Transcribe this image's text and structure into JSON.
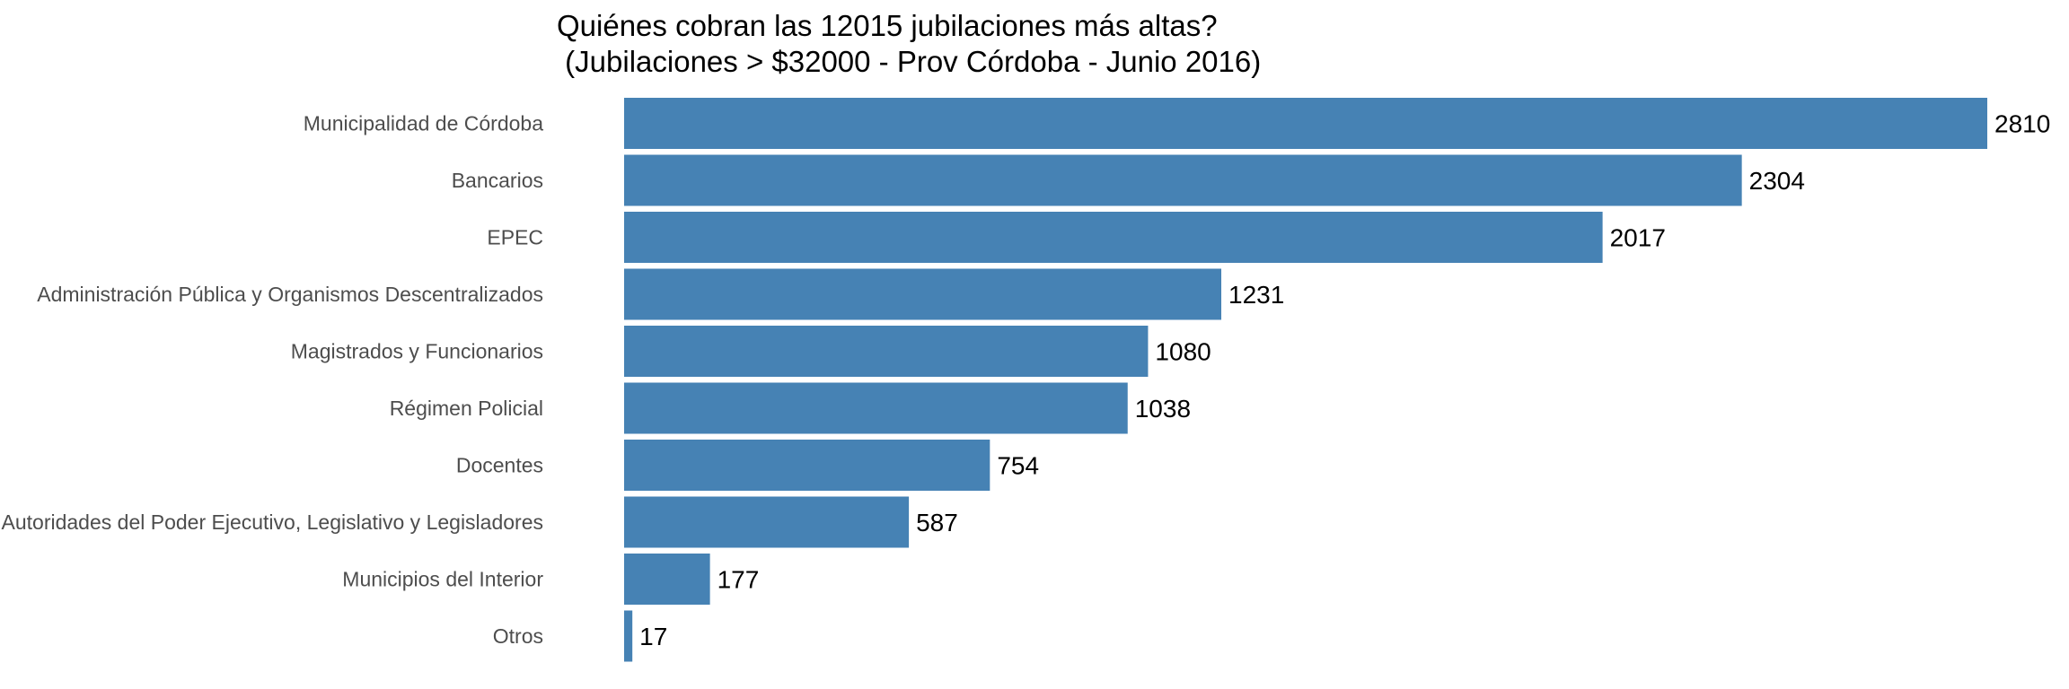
{
  "chart_data": {
    "type": "bar",
    "orientation": "horizontal",
    "title": "Quiénes cobran las 12015 jubilaciones más altas?",
    "subtitle": "(Jubilaciones > $32000 - Prov Córdoba - Junio 2016)",
    "xlabel": "",
    "ylabel": "",
    "categories": [
      "Municipalidad de Córdoba",
      "Bancarios",
      "EPEC",
      "Administración Pública y Organismos Descentralizados",
      "Magistrados y Funcionarios",
      "Régimen Policial",
      "Docentes",
      "Autoridades del Poder Ejecutivo, Legislativo y Legisladores",
      "Municipios del Interior",
      "Otros"
    ],
    "values": [
      2810,
      2304,
      2017,
      1231,
      1080,
      1038,
      754,
      587,
      177,
      17
    ],
    "value_labels": [
      "2810",
      "2304",
      "2017",
      "1231",
      "1080",
      "1038",
      "754",
      "587",
      "177",
      "17"
    ],
    "xlim": [
      0,
      2810
    ],
    "grid": false,
    "bar_color": "#4682b4",
    "data_labels_shown": true
  }
}
